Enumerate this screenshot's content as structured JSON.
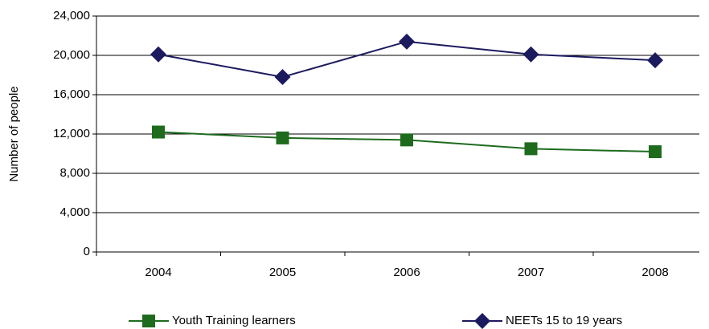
{
  "chart_data": {
    "type": "line",
    "y_label": "Number of people",
    "categories": [
      "2004",
      "2005",
      "2006",
      "2007",
      "2008"
    ],
    "series": [
      {
        "name": "Youth Training learners",
        "color": "#1e6b1e",
        "marker": "square",
        "values": [
          12200,
          11600,
          11400,
          10500,
          10200
        ]
      },
      {
        "name": "NEETs 15 to 19 years",
        "color": "#1c1a5e",
        "marker": "diamond",
        "values": [
          20100,
          17800,
          21400,
          20100,
          19500
        ]
      }
    ],
    "ylim": [
      0,
      24000
    ],
    "yticks": [
      0,
      {
        "value": 4000,
        "label": "4,000"
      },
      {
        "value": 8000,
        "label": "8,000"
      },
      {
        "value": 12000,
        "label": "12,000"
      },
      {
        "value": 16000,
        "label": "16,000"
      },
      {
        "value": 20000,
        "label": "20,000"
      },
      {
        "value": 24000,
        "label": "24,000"
      }
    ],
    "grid": true
  }
}
